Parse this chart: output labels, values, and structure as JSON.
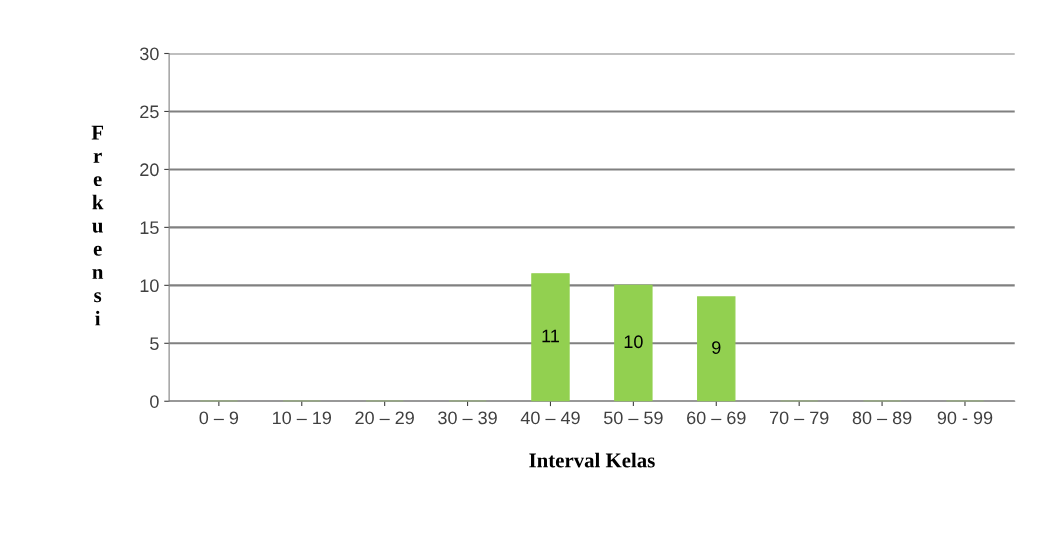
{
  "chart_data": {
    "type": "bar",
    "xlabel": "Interval Kelas",
    "ylabel": "Frekuensi",
    "categories": [
      "0 – 9",
      "10 – 19",
      "20 – 29",
      "30 – 39",
      "40 – 49",
      "50 – 59",
      "60 – 69",
      "70 – 79",
      "80 – 89",
      "90 - 99"
    ],
    "values": [
      0,
      0,
      0,
      0,
      11,
      10,
      9,
      0,
      0,
      0
    ],
    "value_labels": [
      null,
      null,
      null,
      null,
      "11",
      "10",
      "9",
      null,
      null,
      null
    ],
    "color": "#92d050",
    "ylim": [
      0,
      30
    ],
    "yticks": [
      0,
      5,
      10,
      15,
      20,
      25,
      30
    ],
    "grid": "y"
  }
}
